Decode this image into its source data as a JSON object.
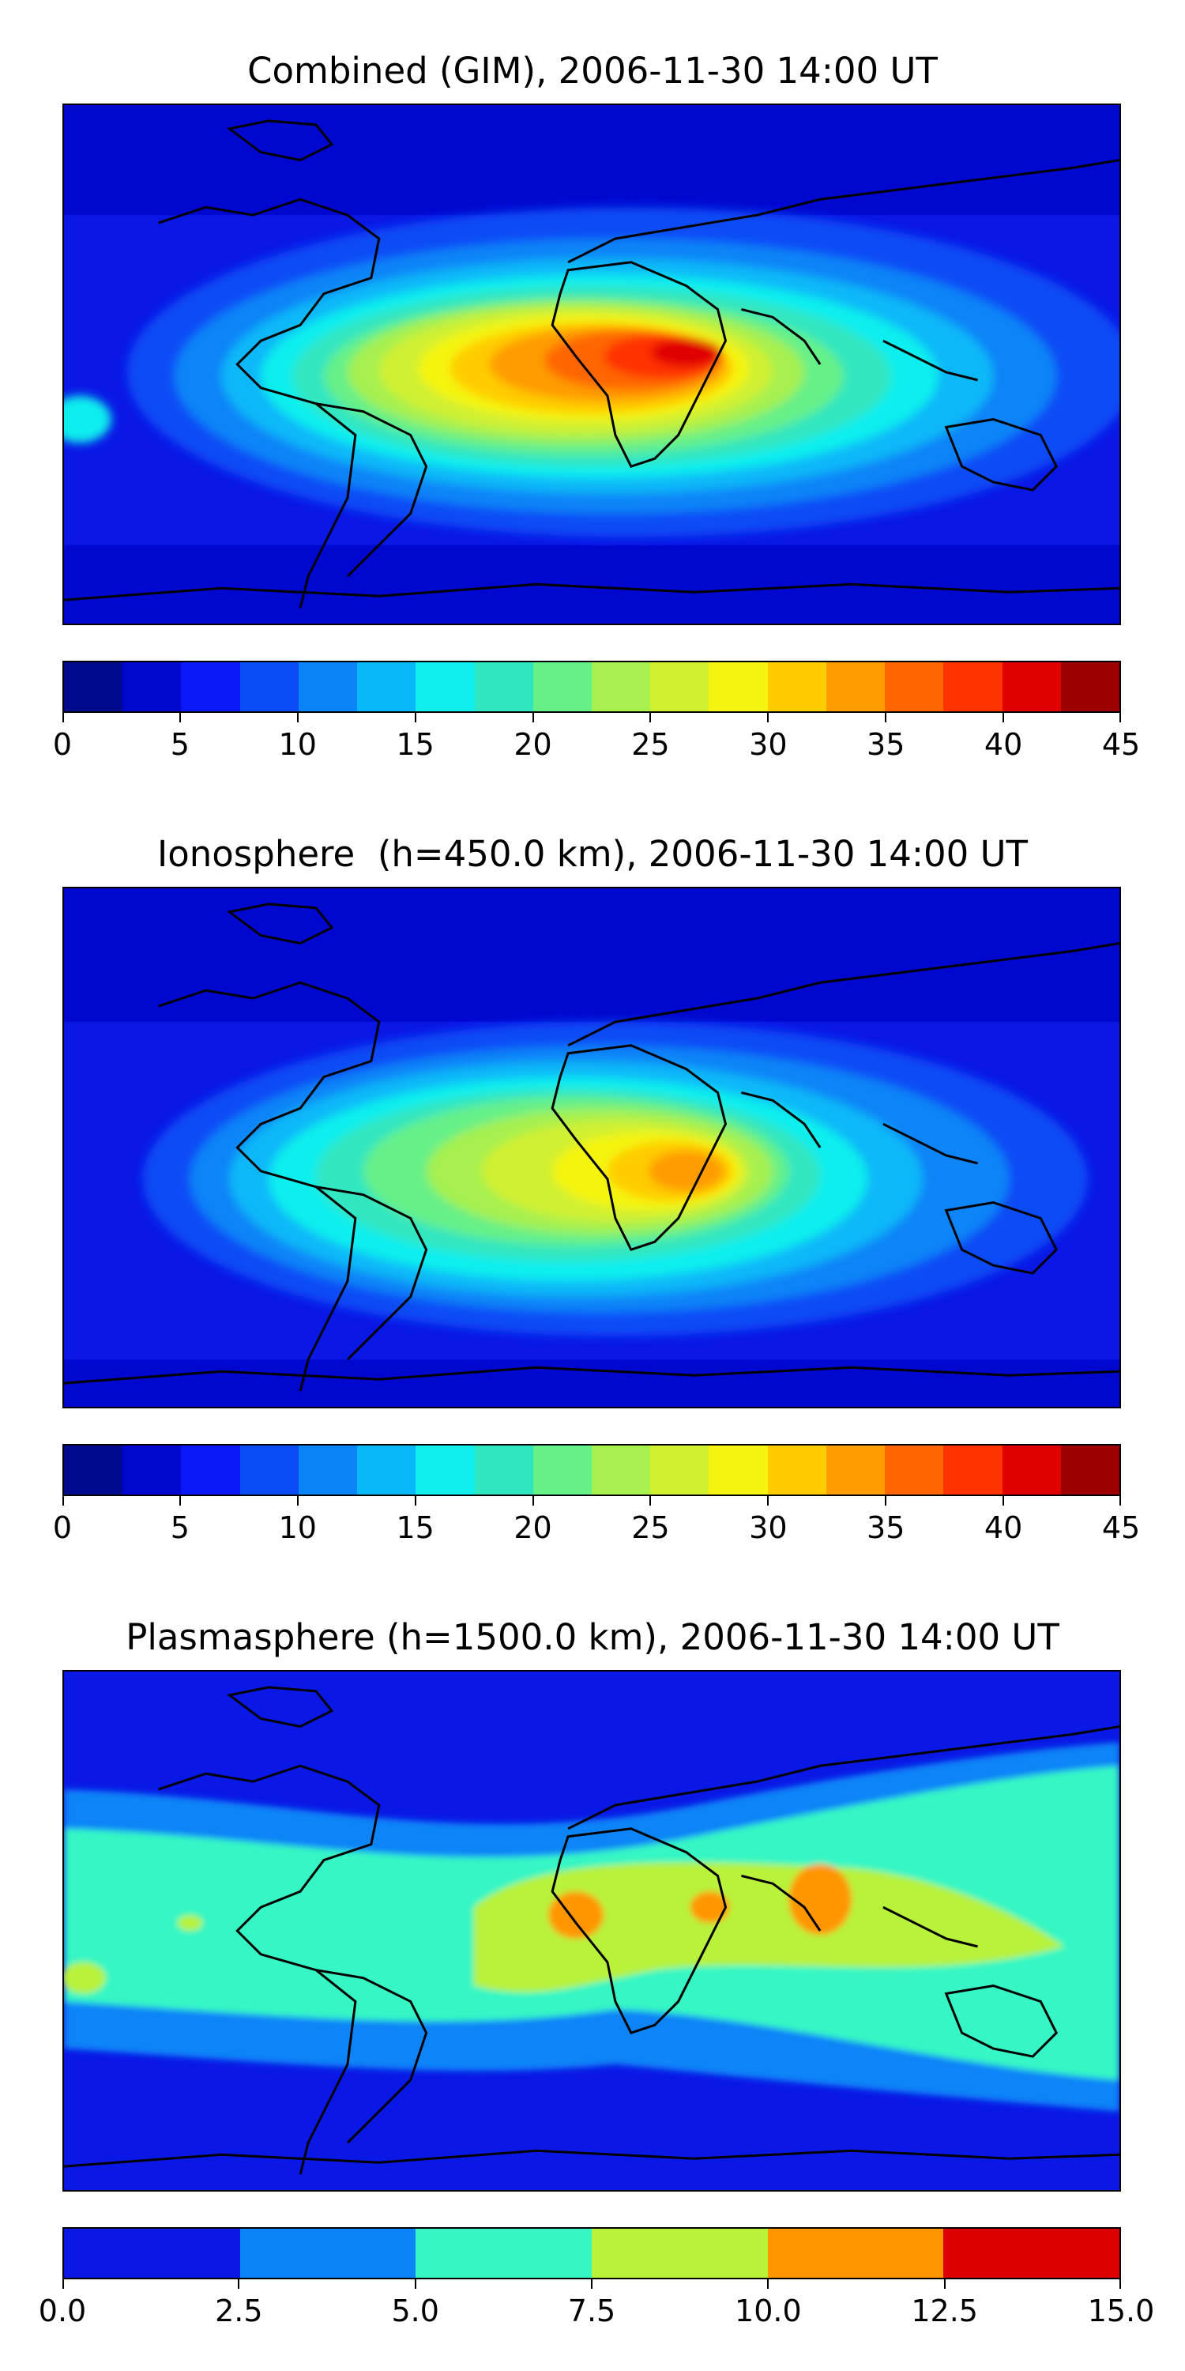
{
  "chart_data": [
    {
      "type": "heatmap",
      "title": "Combined (GIM), 2006-11-30 14:00 UT",
      "projection": "global lon/lat map with coastlines",
      "colorbar": {
        "levels": [
          0,
          2.5,
          5,
          7.5,
          10,
          12.5,
          15,
          17.5,
          20,
          22.5,
          25,
          27.5,
          30,
          32.5,
          35,
          37.5,
          40,
          42.5,
          45
        ],
        "ticks": [
          0,
          5,
          10,
          15,
          20,
          25,
          30,
          35,
          40,
          45
        ],
        "tick_labels": [
          "0",
          "5",
          "10",
          "15",
          "20",
          "25",
          "30",
          "35",
          "40",
          "45"
        ],
        "colors": [
          "#000a8c",
          "#0008d0",
          "#0a18f8",
          "#0a4cf6",
          "#0a84f8",
          "#08b8f8",
          "#10eeee",
          "#30e6c0",
          "#66f088",
          "#a6f050",
          "#d0f030",
          "#f4f410",
          "#ffcc00",
          "#ff9c00",
          "#ff6600",
          "#ff3300",
          "#e00000",
          "#9c0000"
        ]
      },
      "peak_region": "Central Africa, ~40-42.5",
      "xlabel": "",
      "ylabel": ""
    },
    {
      "type": "heatmap",
      "title": "Ionosphere  (h=450.0 km), 2006-11-30 14:00 UT",
      "projection": "global lon/lat map with coastlines",
      "colorbar": {
        "levels": [
          0,
          2.5,
          5,
          7.5,
          10,
          12.5,
          15,
          17.5,
          20,
          22.5,
          25,
          27.5,
          30,
          32.5,
          35,
          37.5,
          40,
          42.5,
          45
        ],
        "ticks": [
          0,
          5,
          10,
          15,
          20,
          25,
          30,
          35,
          40,
          45
        ],
        "tick_labels": [
          "0",
          "5",
          "10",
          "15",
          "20",
          "25",
          "30",
          "35",
          "40",
          "45"
        ],
        "colors": [
          "#000a8c",
          "#0008d0",
          "#0a18f8",
          "#0a4cf6",
          "#0a84f8",
          "#08b8f8",
          "#10eeee",
          "#30e6c0",
          "#66f088",
          "#a6f050",
          "#d0f030",
          "#f4f410",
          "#ffcc00",
          "#ff9c00",
          "#ff6600",
          "#ff3300",
          "#e00000",
          "#9c0000"
        ]
      },
      "peak_region": "Southern Africa, ~32.5-35",
      "xlabel": "",
      "ylabel": ""
    },
    {
      "type": "heatmap",
      "title": "Plasmasphere (h=1500.0 km), 2006-11-30 14:00 UT",
      "projection": "global lon/lat map with coastlines",
      "colorbar": {
        "levels": [
          0.0,
          2.5,
          5.0,
          7.5,
          10.0,
          12.5,
          15.0
        ],
        "ticks": [
          0.0,
          2.5,
          5.0,
          7.5,
          10.0,
          12.5,
          15.0
        ],
        "tick_labels": [
          "0.0",
          "2.5",
          "5.0",
          "7.5",
          "10.0",
          "12.5",
          "15.0"
        ],
        "colors": [
          "#0a18e6",
          "#0a84f8",
          "#36f6c4",
          "#b8f23a",
          "#ff9600",
          "#dc0000"
        ]
      },
      "peak_region": "West Africa, Red Sea, India ~10-12.5",
      "xlabel": "",
      "ylabel": ""
    }
  ]
}
